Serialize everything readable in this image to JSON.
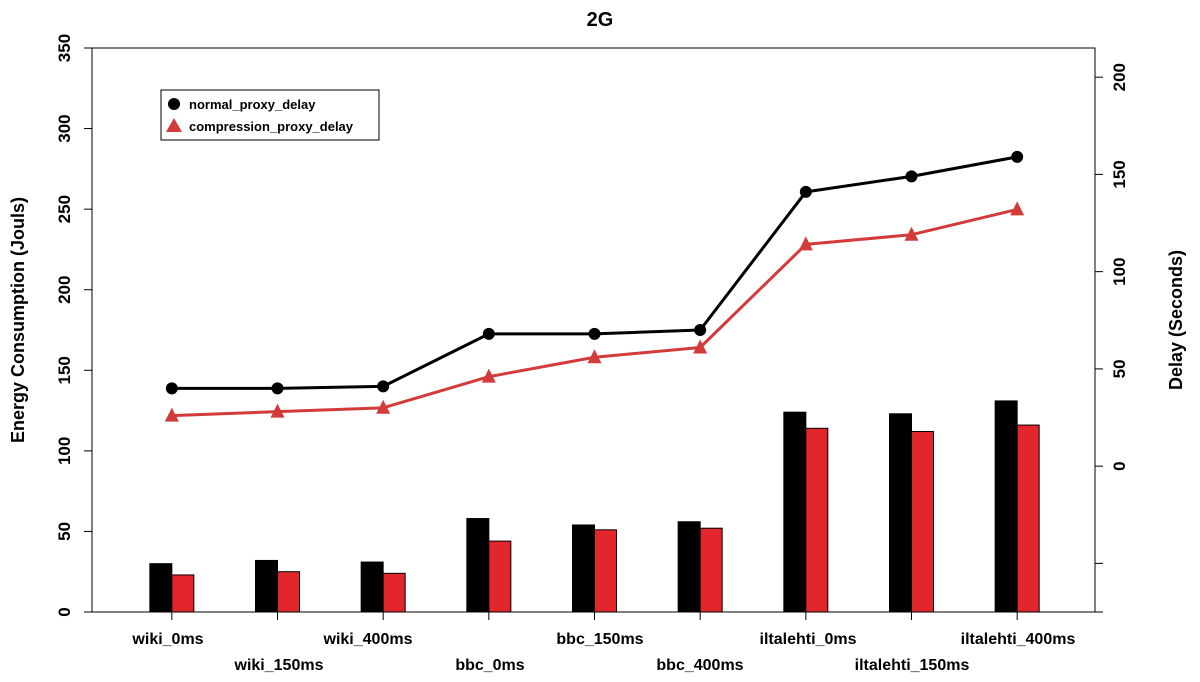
{
  "chart_data": {
    "type": "bar",
    "title": "2G",
    "ylabel": "Energy Consumption (Jouls)",
    "y2label": "Delay (Seconds)",
    "ylim": [
      0,
      350
    ],
    "yticks": [
      0,
      50,
      100,
      150,
      200,
      250,
      300,
      350
    ],
    "y2lim": [
      -75,
      215
    ],
    "y2ticks": [
      0,
      50,
      100,
      150,
      200
    ],
    "grid": false,
    "legend_position": "top-left",
    "categories": [
      "wiki_0ms",
      "wiki_150ms",
      "wiki_400ms",
      "bbc_0ms",
      "bbc_150ms",
      "bbc_400ms",
      "iltalehti_0ms",
      "iltalehti_150ms",
      "iltalehti_400ms"
    ],
    "bar_series": [
      {
        "name": "",
        "color": "#000000",
        "values": [
          30,
          32,
          31,
          58,
          54,
          56,
          124,
          123,
          131
        ]
      },
      {
        "name": "",
        "color": "#e3262b",
        "values": [
          23,
          25,
          24,
          44,
          51,
          52,
          114,
          112,
          116
        ]
      }
    ],
    "line_series": [
      {
        "name": "normal_proxy_delay",
        "color": "#000000",
        "marker": "circle",
        "values": [
          40,
          40,
          41,
          68,
          68,
          70,
          141,
          149,
          159
        ]
      },
      {
        "name": "compression_proxy_delay",
        "color": "#d33a3a",
        "marker": "triangle",
        "values": [
          26,
          28,
          30,
          46,
          56,
          61,
          114,
          119,
          132
        ]
      }
    ]
  }
}
